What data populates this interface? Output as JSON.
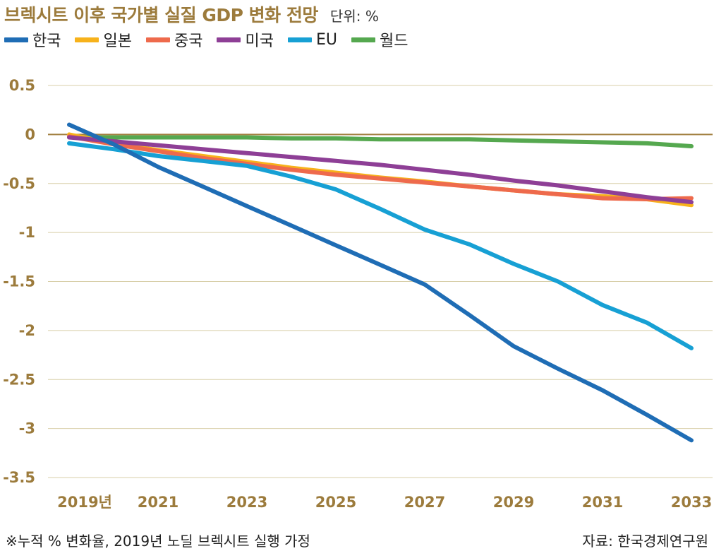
{
  "header": {
    "title": "브렉시트 이후 국가별 실질 GDP 변화 전망",
    "unit": "단위: %"
  },
  "footer": {
    "note": "※누적 % 변화율, 2019년 노딜 브렉시트 실행 가정",
    "source": "자료: 한국경제연구원"
  },
  "chart_data": {
    "type": "line",
    "title": "브렉시트 이후 국가별 실질 GDP 변화 전망",
    "xlabel": "",
    "ylabel": "",
    "x": [
      2019,
      2020,
      2021,
      2022,
      2023,
      2024,
      2025,
      2026,
      2027,
      2028,
      2029,
      2030,
      2031,
      2032,
      2033
    ],
    "xticks": [
      2019,
      2021,
      2023,
      2025,
      2027,
      2029,
      2031,
      2033
    ],
    "xtick_labels": [
      "2019년",
      "2021",
      "2023",
      "2025",
      "2027",
      "2029",
      "2031",
      "2033"
    ],
    "yticks": [
      0.5,
      0,
      -0.5,
      -1,
      -1.5,
      -2,
      -2.5,
      -3,
      -3.5
    ],
    "ytick_labels": [
      "0.5",
      "0",
      "-0.5",
      "-1",
      "-1.5",
      "-2",
      "-2.5",
      "-3",
      "-3.5"
    ],
    "ylim": [
      -3.5,
      0.5
    ],
    "xlim": [
      2019,
      2033
    ],
    "grid": true,
    "legend_position": "top-left",
    "series": [
      {
        "name": "한국",
        "color": "#1f6db5",
        "values": [
          0.1,
          -0.1,
          -0.33,
          -0.53,
          -0.73,
          -0.93,
          -1.13,
          -1.33,
          -1.53,
          -1.84,
          -2.16,
          -2.39,
          -2.61,
          -2.86,
          -3.12
        ]
      },
      {
        "name": "일본",
        "color": "#f7b21b",
        "values": [
          0.0,
          -0.09,
          -0.16,
          -0.22,
          -0.28,
          -0.34,
          -0.39,
          -0.44,
          -0.48,
          -0.53,
          -0.57,
          -0.61,
          -0.63,
          -0.66,
          -0.72
        ]
      },
      {
        "name": "중국",
        "color": "#ee6a4c",
        "values": [
          -0.02,
          -0.1,
          -0.17,
          -0.24,
          -0.3,
          -0.36,
          -0.41,
          -0.45,
          -0.49,
          -0.53,
          -0.57,
          -0.61,
          -0.65,
          -0.66,
          -0.65
        ]
      },
      {
        "name": "미국",
        "color": "#8e3f96",
        "values": [
          -0.03,
          -0.07,
          -0.11,
          -0.15,
          -0.19,
          -0.23,
          -0.27,
          -0.31,
          -0.36,
          -0.41,
          -0.47,
          -0.52,
          -0.58,
          -0.64,
          -0.69
        ]
      },
      {
        "name": "EU",
        "color": "#17a0d4",
        "values": [
          -0.09,
          -0.15,
          -0.22,
          -0.27,
          -0.32,
          -0.43,
          -0.56,
          -0.76,
          -0.97,
          -1.12,
          -1.32,
          -1.5,
          -1.74,
          -1.92,
          -2.18
        ]
      },
      {
        "name": "월드",
        "color": "#55a84f",
        "values": [
          -0.03,
          -0.03,
          -0.03,
          -0.03,
          -0.03,
          -0.04,
          -0.04,
          -0.05,
          -0.05,
          -0.05,
          -0.06,
          -0.07,
          -0.08,
          -0.09,
          -0.12
        ]
      }
    ]
  }
}
